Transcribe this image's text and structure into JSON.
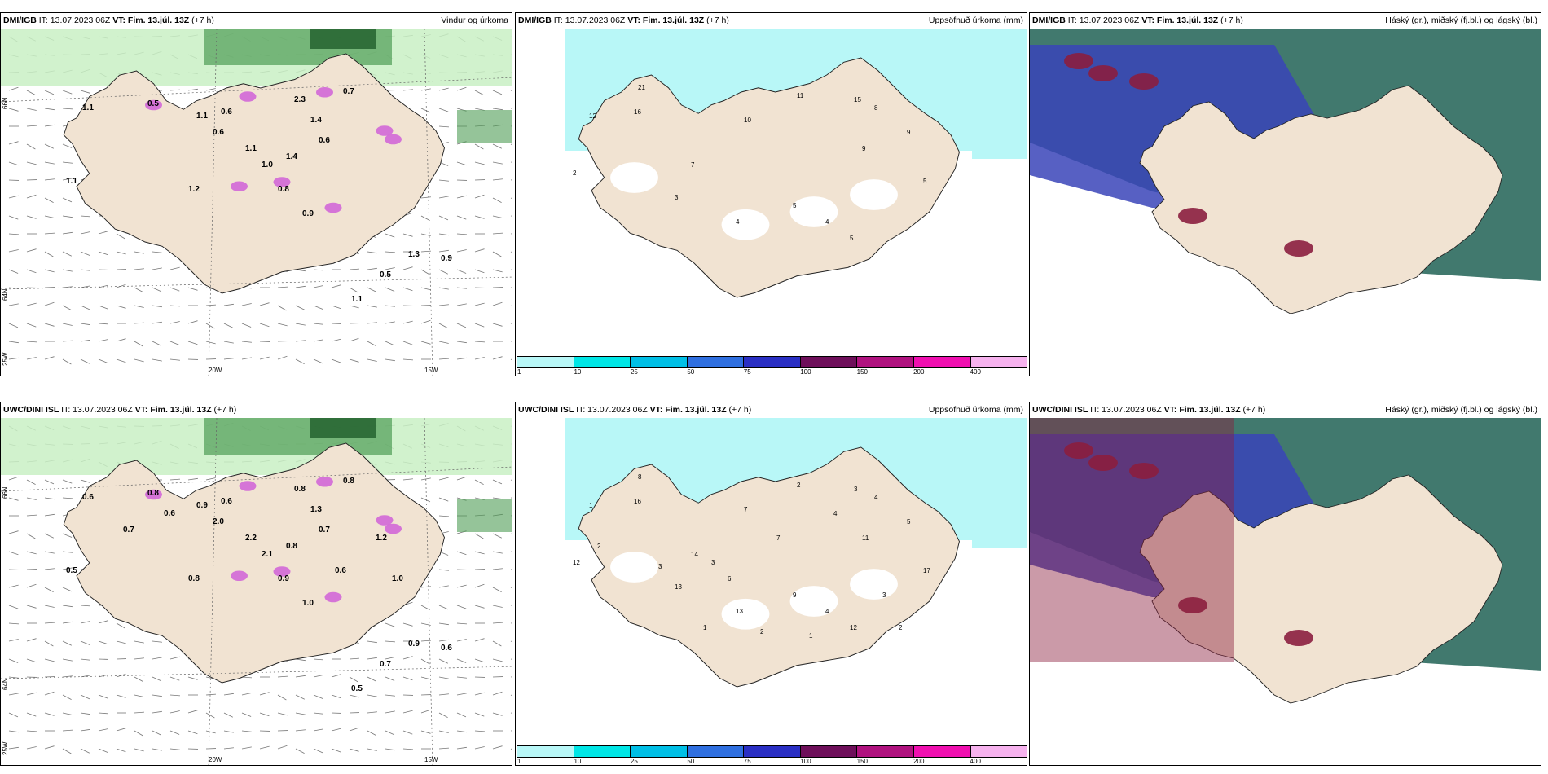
{
  "panels": [
    {
      "id": "dmi-wind",
      "model": "DMI/IGB",
      "init_label": "IT: 13.07.2023 06Z",
      "valid_label": "VT: Fim. 13.júl. 13Z",
      "lead": "(+7 h)",
      "product": "Vindur og úrkoma",
      "lat_labels": [
        "66N",
        "64N"
      ],
      "lon_labels": [
        "25W",
        "20W",
        "15W"
      ],
      "values": [
        "1.1",
        "1.1",
        "0.5",
        "1.1",
        "0.6",
        "1.4",
        "0.6",
        "0.7",
        "0.9",
        "0.8",
        "0.6",
        "1.1",
        "1.0",
        "1.2",
        "1.3",
        "0.9",
        "0.5",
        "1.1",
        "2.3",
        "1.4"
      ]
    },
    {
      "id": "dmi-precip",
      "model": "DMI/IGB",
      "init_label": "IT: 13.07.2023 06Z",
      "valid_label": "VT: Fim. 13.júl. 13Z",
      "lead": "(+7 h)",
      "product": "Uppsöfnuð úrkoma (mm)",
      "values": [
        "12",
        "16",
        "2",
        "3",
        "7",
        "10",
        "11",
        "15",
        "8",
        "9",
        "9",
        "5",
        "4",
        "5",
        "4",
        "5",
        "21"
      ]
    },
    {
      "id": "dmi-cloud",
      "model": "DMI/IGB",
      "init_label": "IT: 13.07.2023 06Z",
      "valid_label": "VT: Fim. 13.júl. 13Z",
      "lead": "(+7 h)",
      "product": "Háský (gr.), miðský (fj.bl.) og lágský (bl.)"
    },
    {
      "id": "uwc-wind",
      "model": "UWC/DINI ISL",
      "init_label": "IT: 13.07.2023 06Z",
      "valid_label": "VT: Fim. 13.júl. 13Z",
      "lead": "(+7 h)",
      "product": "",
      "lat_labels": [
        "66N",
        "64N"
      ],
      "lon_labels": [
        "25W",
        "20W",
        "15W"
      ],
      "values": [
        "0.5",
        "0.6",
        "0.8",
        "0.9",
        "0.6",
        "0.8",
        "0.7",
        "0.8",
        "1.0",
        "0.9",
        "2.0",
        "2.2",
        "2.1",
        "0.8",
        "0.9",
        "0.6",
        "0.7",
        "0.5",
        "0.8",
        "1.3",
        "0.6",
        "0.7",
        "0.6",
        "1.2",
        "1.0"
      ]
    },
    {
      "id": "uwc-precip",
      "model": "UWC/DINI ISL",
      "init_label": "IT: 13.07.2023 06Z",
      "valid_label": "VT: Fim. 13.júl. 13Z",
      "lead": "(+7 h)",
      "product": "Uppsöfnuð úrkoma (mm)",
      "values": [
        "1",
        "16",
        "12",
        "13",
        "14",
        "7",
        "2",
        "3",
        "4",
        "5",
        "11",
        "17",
        "13",
        "9",
        "4",
        "12",
        "8",
        "2",
        "3",
        "1",
        "2",
        "1",
        "3",
        "6",
        "7",
        "4",
        "3",
        "2"
      ]
    },
    {
      "id": "uwc-cloud",
      "model": "UWC/DINI ISL",
      "init_label": "IT: 13.07.2023 06Z",
      "valid_label": "VT: Fim. 13.júl. 13Z",
      "lead": "(+7 h)",
      "product": "Háský (gr.), miðský (fj.bl.) og lágský (bl.)"
    }
  ],
  "precip_legend": {
    "ticks": [
      "1",
      "10",
      "25",
      "50",
      "75",
      "100",
      "150",
      "200",
      "400"
    ],
    "colors": [
      "#b8f7f7",
      "#00e6e6",
      "#00bfe6",
      "#2f6fe0",
      "#2a2fc4",
      "#6e0f5a",
      "#b0127f",
      "#f00fb0",
      "#f6b2ee"
    ]
  },
  "colors": {
    "land": "#f1e3d2",
    "wind_green": "#2e8b3a",
    "precip_light": "#b8f7f7",
    "cloud_high": "#2c6a5e",
    "cloud_mid": "#3a44b8",
    "cloud_low": "#8b1e3f"
  }
}
